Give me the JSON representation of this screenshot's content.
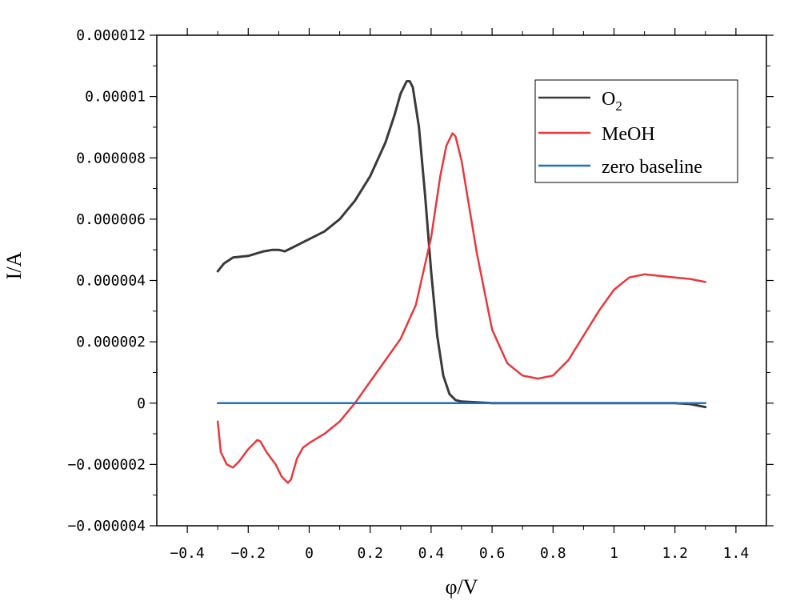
{
  "chart_data": {
    "type": "line",
    "title": "",
    "xlabel": "φ/V",
    "ylabel": "I/A",
    "xlim": [
      -0.5,
      1.5
    ],
    "ylim": [
      -4e-06,
      1.2e-05
    ],
    "x_ticks": [
      -0.4,
      -0.2,
      0,
      0.2,
      0.4,
      0.6,
      0.8,
      1,
      1.2,
      1.4
    ],
    "x_tick_labels": [
      "−0.4",
      "−0.2",
      "0",
      "0.2",
      "0.4",
      "0.6",
      "0.8",
      "1",
      "1.2",
      "1.4"
    ],
    "y_ticks": [
      -4e-06,
      -2e-06,
      0,
      2e-06,
      4e-06,
      6e-06,
      8e-06,
      1e-05,
      1.2e-05
    ],
    "y_tick_labels": [
      "−0.000004",
      "−0.000002",
      "0",
      "0.000002",
      "0.000004",
      "0.000006",
      "0.000008",
      "0.00001",
      "0.000012"
    ],
    "grid": false,
    "legend_position": "top-right",
    "series": [
      {
        "name": "O2",
        "legend_base": "O",
        "legend_sub": "2",
        "color": "#3a3a3a",
        "x": [
          -0.3,
          -0.28,
          -0.25,
          -0.2,
          -0.15,
          -0.12,
          -0.1,
          -0.08,
          -0.05,
          0,
          0.05,
          0.1,
          0.15,
          0.2,
          0.25,
          0.28,
          0.3,
          0.32,
          0.33,
          0.34,
          0.36,
          0.38,
          0.4,
          0.42,
          0.44,
          0.46,
          0.48,
          0.5,
          0.6,
          0.8,
          1.0,
          1.2,
          1.25,
          1.3
        ],
        "y": [
          4.3e-06,
          4.55e-06,
          4.75e-06,
          4.8e-06,
          4.95e-06,
          5e-06,
          5e-06,
          4.95e-06,
          5.1e-06,
          5.35e-06,
          5.6e-06,
          6e-06,
          6.6e-06,
          7.4e-06,
          8.5e-06,
          9.4e-06,
          1.01e-05,
          1.05e-05,
          1.05e-05,
          1.03e-05,
          9e-06,
          6.8e-06,
          4.3e-06,
          2.2e-06,
          9e-07,
          3e-07,
          1e-07,
          5e-08,
          0.0,
          0.0,
          0.0,
          0.0,
          -3e-08,
          -1.3e-07
        ]
      },
      {
        "name": "MeOH",
        "color": "#e8383d",
        "x": [
          -0.3,
          -0.29,
          -0.27,
          -0.25,
          -0.23,
          -0.2,
          -0.17,
          -0.16,
          -0.14,
          -0.11,
          -0.09,
          -0.07,
          -0.06,
          -0.04,
          -0.02,
          0,
          0.05,
          0.1,
          0.15,
          0.2,
          0.25,
          0.3,
          0.35,
          0.4,
          0.43,
          0.45,
          0.47,
          0.48,
          0.5,
          0.55,
          0.6,
          0.65,
          0.7,
          0.75,
          0.8,
          0.85,
          0.9,
          0.95,
          1.0,
          1.05,
          1.1,
          1.15,
          1.2,
          1.25,
          1.3
        ],
        "y": [
          -6e-07,
          -1.6e-06,
          -2e-06,
          -2.1e-06,
          -1.9e-06,
          -1.5e-06,
          -1.2e-06,
          -1.25e-06,
          -1.6e-06,
          -2e-06,
          -2.4e-06,
          -2.6e-06,
          -2.5e-06,
          -1.8e-06,
          -1.45e-06,
          -1.3e-06,
          -1e-06,
          -6e-07,
          0.0,
          7e-07,
          1.4e-06,
          2.1e-06,
          3.2e-06,
          5.4e-06,
          7.4e-06,
          8.4e-06,
          8.8e-06,
          8.7e-06,
          7.9e-06,
          4.9e-06,
          2.4e-06,
          1.3e-06,
          9e-07,
          8e-07,
          9e-07,
          1.4e-06,
          2.2e-06,
          3e-06,
          3.7e-06,
          4.1e-06,
          4.2e-06,
          4.15e-06,
          4.1e-06,
          4.05e-06,
          3.95e-06
        ]
      },
      {
        "name": "zero baseline",
        "color": "#1f6fc5",
        "x": [
          -0.3,
          1.3
        ],
        "y": [
          0,
          0
        ]
      }
    ]
  }
}
